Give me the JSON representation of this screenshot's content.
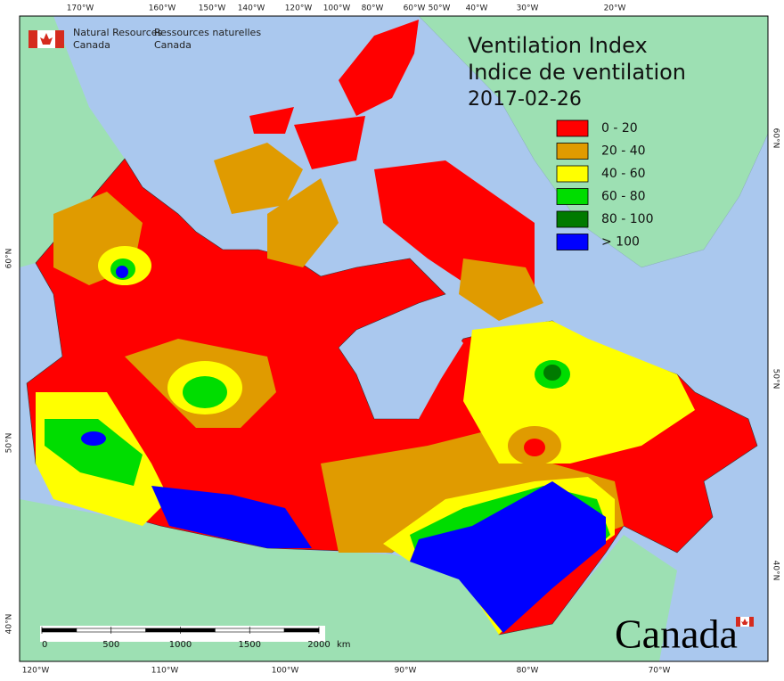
{
  "header": {
    "en": [
      "Natural Resources",
      "Canada"
    ],
    "fr": [
      "Ressources naturelles",
      "Canada"
    ]
  },
  "title": [
    "Ventilation Index",
    "Indice de ventilation"
  ],
  "date": "2017-02-26",
  "legend": [
    {
      "label": "0 - 20",
      "color": "#ff0000"
    },
    {
      "label": "20 - 40",
      "color": "#e09b00"
    },
    {
      "label": "40 - 60",
      "color": "#ffff00"
    },
    {
      "label": "60 - 80",
      "color": "#00dd00"
    },
    {
      "label": "80 - 100",
      "color": "#007a00"
    },
    {
      "label": "> 100",
      "color": "#0000ff"
    }
  ],
  "top_labels": [
    "170°W",
    "160°W",
    "150°W",
    "140°W",
    "120°W",
    "100°W",
    "80°W",
    "60°W",
    "50°W",
    "40°W",
    "30°W",
    "20°W"
  ],
  "bottom_labels": [
    "120°W",
    "110°W",
    "100°W",
    "90°W",
    "80°W",
    "70°W"
  ],
  "left_labels": [
    "60°N",
    "50°N",
    "40°N"
  ],
  "right_labels": [
    "60°N",
    "50°N",
    "40°N"
  ],
  "scale": {
    "ticks": [
      0,
      500,
      1000,
      1500,
      2000
    ],
    "unit": "km"
  },
  "wordmark": "Canada"
}
